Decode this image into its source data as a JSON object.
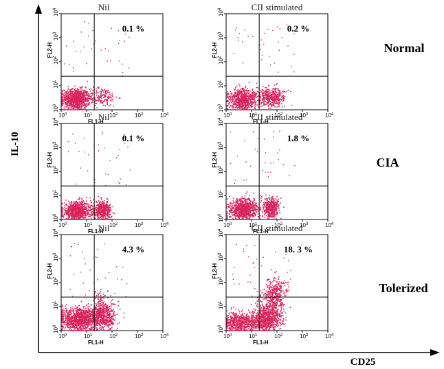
{
  "chart_data": {
    "type": "scatter",
    "x_axis_label": "CD25",
    "y_axis_label": "IL-10",
    "row_labels": [
      "Normal",
      "CIA",
      "Tolerized"
    ],
    "panel_x_channel": "FL1-H",
    "panel_y_channel": "FL2-H",
    "panel_scale": "log",
    "panel_range": [
      1,
      10000
    ],
    "tick_labels": [
      {
        "base": "10",
        "exp": "0"
      },
      {
        "base": "10",
        "exp": "1"
      },
      {
        "base": "10",
        "exp": "2"
      },
      {
        "base": "10",
        "exp": "3"
      },
      {
        "base": "10",
        "exp": "4"
      }
    ],
    "quadrant_gates": {
      "x": 20,
      "y": 25
    },
    "panels": [
      {
        "row": "Normal",
        "title": "Nil",
        "percent_label": "0.1 %",
        "upper_right_percent": 0.1
      },
      {
        "row": "Normal",
        "title": "CII stimulated",
        "percent_label": "0.2 %",
        "upper_right_percent": 0.2
      },
      {
        "row": "CIA",
        "title": "Nil",
        "percent_label": "0.1 %",
        "upper_right_percent": 0.1
      },
      {
        "row": "CIA",
        "title": "CII stimulated",
        "percent_label": "1.8 %",
        "upper_right_percent": 1.8
      },
      {
        "row": "Tolerized",
        "title": "Nil",
        "percent_label": "4.3 %",
        "upper_right_percent": 4.3
      },
      {
        "row": "Tolerized",
        "title": "CII stimulated",
        "percent_label": "18. 3 %",
        "upper_right_percent": 18.3
      }
    ],
    "dot_color": "#d9245c"
  }
}
